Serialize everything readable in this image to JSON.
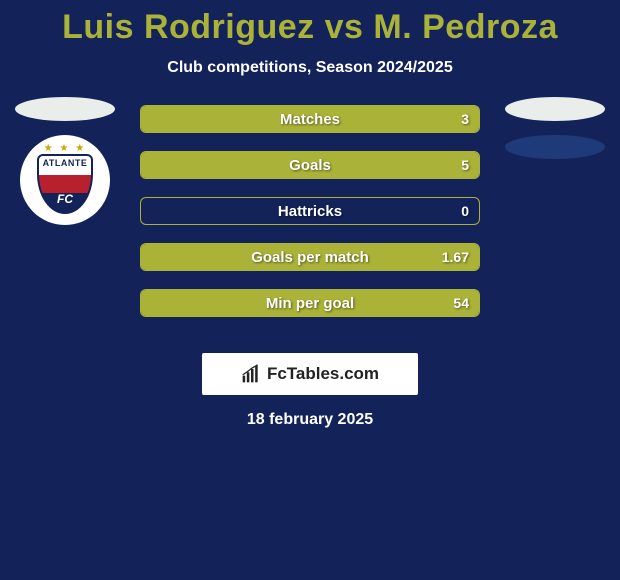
{
  "background_color": "#13235a",
  "title": {
    "text": "Luis Rodriguez vs M. Pedroza",
    "color": "#abb238",
    "fontsize": 34,
    "fontweight": 800
  },
  "subtitle": {
    "text": "Club competitions, Season 2024/2025",
    "color": "#ffffff",
    "fontsize": 16
  },
  "date": {
    "text": "18 february 2025",
    "color": "#ffffff",
    "fontsize": 16
  },
  "watermark": {
    "text": "FcTables.com",
    "background": "#ffffff",
    "text_color": "#222222"
  },
  "players_left": {
    "ovals": [
      {
        "color": "#e9eeea"
      }
    ],
    "badge": {
      "name": "ATLANTE",
      "sub": "FC",
      "colors": {
        "top": "#ffffff",
        "mid": "#b9202d",
        "bot": "#13235a",
        "star": "#c9a900"
      }
    }
  },
  "players_right": {
    "ovals": [
      {
        "color": "#e9eeea"
      },
      {
        "color": "#1e3a78"
      }
    ]
  },
  "bars": {
    "track_bg": "rgba(255,255,255,0)",
    "fill_color": "#abb238",
    "border_color": "#abb238",
    "label_color": "#ffffff",
    "value_color": "#ffffff",
    "items": [
      {
        "label": "Matches",
        "value": "3",
        "fill_pct": 100
      },
      {
        "label": "Goals",
        "value": "5",
        "fill_pct": 100
      },
      {
        "label": "Hattricks",
        "value": "0",
        "fill_pct": 0
      },
      {
        "label": "Goals per match",
        "value": "1.67",
        "fill_pct": 100
      },
      {
        "label": "Min per goal",
        "value": "54",
        "fill_pct": 100
      }
    ]
  }
}
